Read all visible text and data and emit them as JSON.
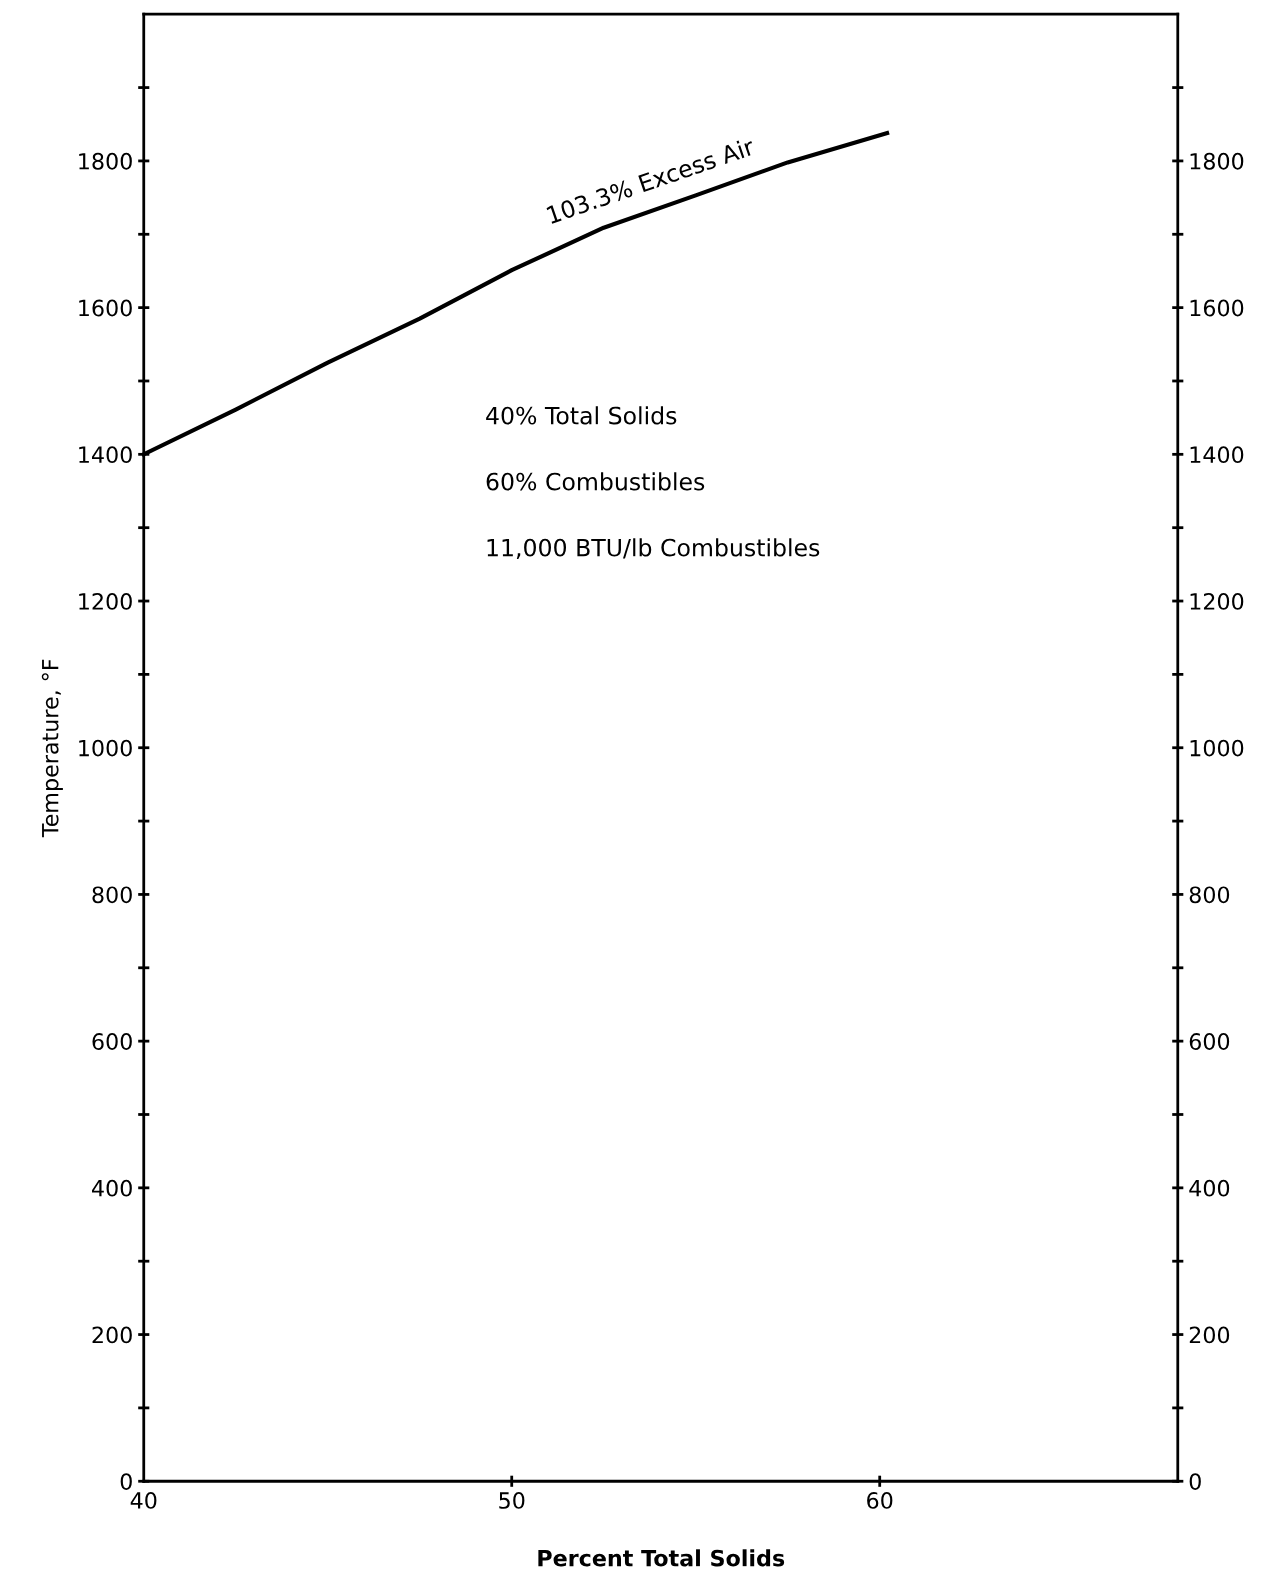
{
  "chart_data": {
    "type": "line",
    "xlabel": "Percent Total Solids",
    "ylabel": "Temperature, °F",
    "x": [
      40,
      42.5,
      45,
      47.5,
      50,
      52.5,
      55,
      57.5,
      60.2
    ],
    "series": [
      {
        "name": "103.3% Excess Air",
        "color": "#000000",
        "values": [
          1400,
          1461,
          1525,
          1585,
          1651,
          1709,
          1753,
          1798,
          1838
        ]
      }
    ],
    "xlim": [
      40,
      68.1
    ],
    "xticks": [
      40,
      50,
      60
    ],
    "ylim": [
      0,
      2000
    ],
    "yticks": [
      0,
      {
        "value": 100,
        "label": null
      },
      200,
      {
        "value": 300,
        "label": null
      },
      400,
      {
        "value": 500,
        "label": null
      },
      600,
      {
        "value": 700,
        "label": null
      },
      800,
      {
        "value": 900,
        "label": null
      },
      1000,
      {
        "value": 1100,
        "label": null
      },
      1200,
      {
        "value": 1300,
        "label": null
      },
      1400,
      {
        "value": 1500,
        "label": null
      },
      1600,
      {
        "value": 1700,
        "label": null
      },
      1800,
      {
        "value": 1900,
        "label": null
      }
    ],
    "y2lim": [
      0,
      2000
    ],
    "y2ticks": [
      0,
      {
        "value": 100,
        "label": null
      },
      200,
      {
        "value": 300,
        "label": null
      },
      400,
      {
        "value": 500,
        "label": null
      },
      600,
      {
        "value": 700,
        "label": null
      },
      800,
      {
        "value": 900,
        "label": null
      },
      1000,
      {
        "value": 1100,
        "label": null
      },
      1200,
      {
        "value": 1300,
        "label": null
      },
      1400,
      {
        "value": 1500,
        "label": null
      },
      1600,
      {
        "value": 1700,
        "label": null
      },
      1800,
      {
        "value": 1900,
        "label": null
      }
    ],
    "annotations": [
      "40% Total Solids",
      "60% Combustibles",
      "11,000 BTU/lb Combustibles"
    ],
    "grid": false,
    "legend": false,
    "marker": "none",
    "line_style": "solid"
  }
}
